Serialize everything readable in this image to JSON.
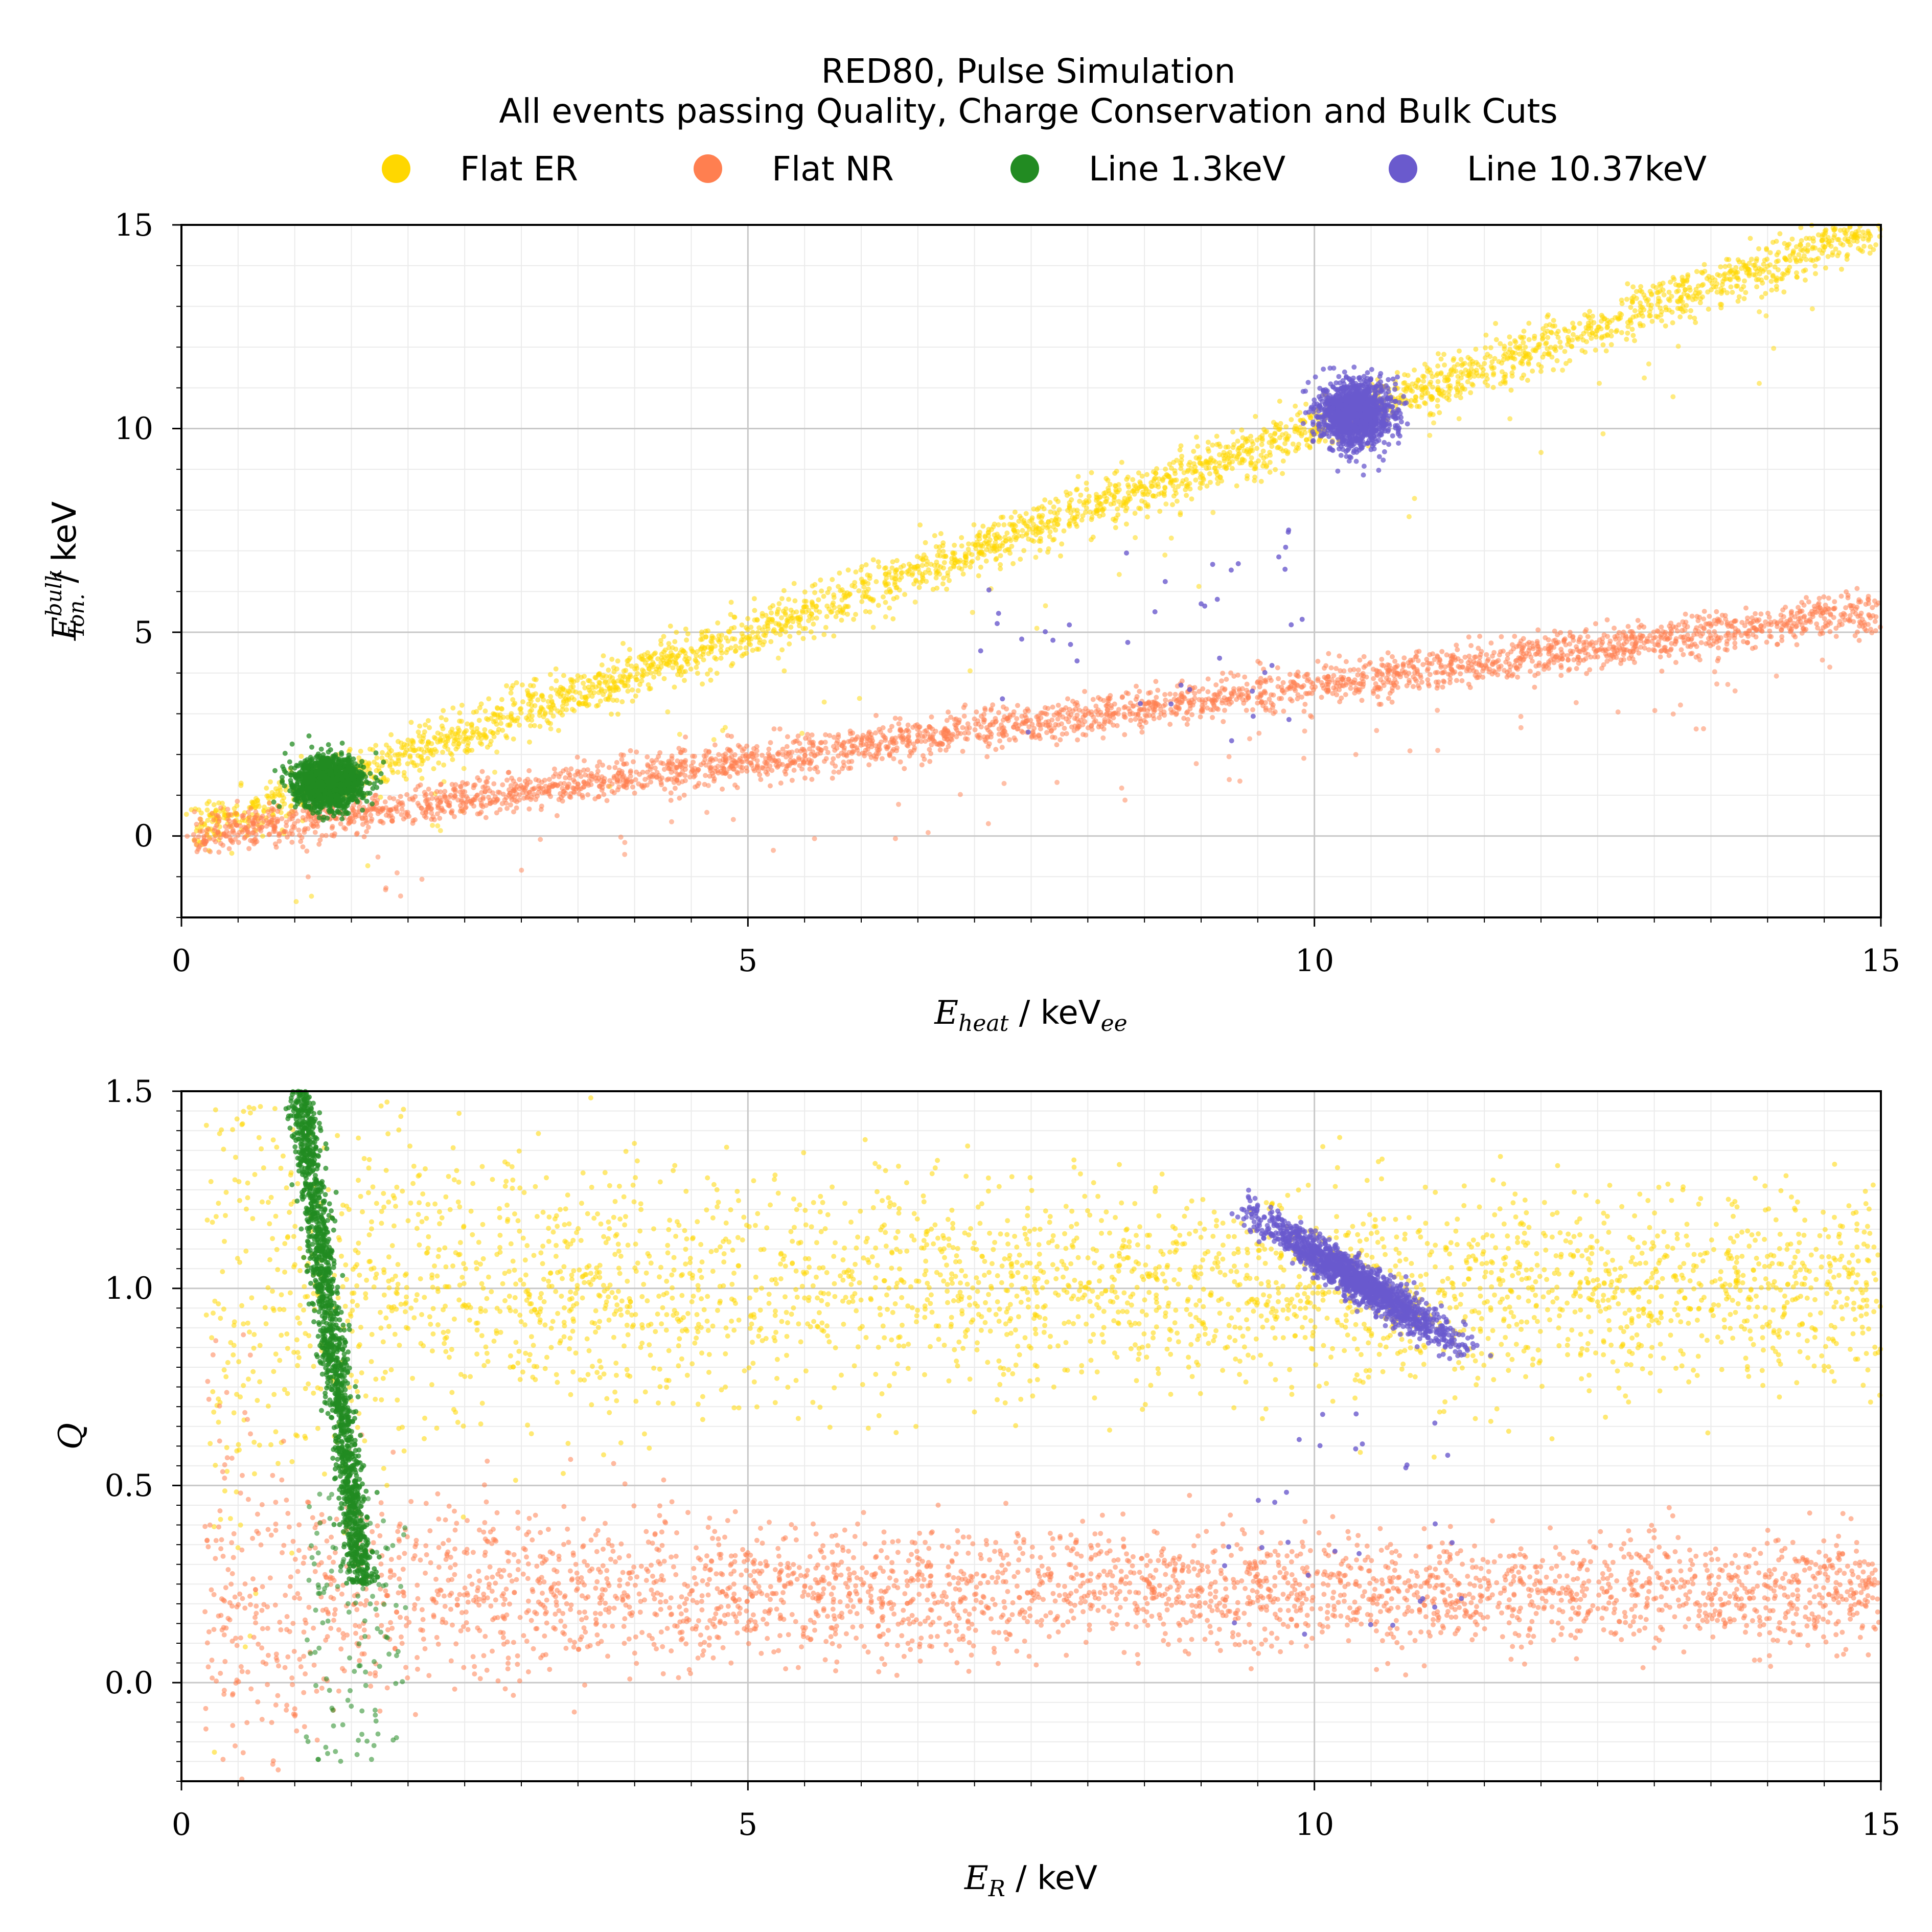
{
  "title": {
    "line1": "RED80, Pulse Simulation",
    "line2": "All events passing Quality, Charge Conservation and Bulk Cuts"
  },
  "legend": {
    "placement": "top-center",
    "items": [
      {
        "label": "Flat ER",
        "color": "#ffd700"
      },
      {
        "label": "Flat NR",
        "color": "#ff7f50"
      },
      {
        "label": "Line 1.3keV",
        "color": "#228b22"
      },
      {
        "label": "Line 10.37keV",
        "color": "#6a5acd"
      }
    ]
  },
  "chart_data": [
    {
      "type": "scatter",
      "title": "",
      "xlabel": {
        "var": "E",
        "sub": "heat",
        "unit": "keV",
        "unit_sub": "ee"
      },
      "ylabel": {
        "var": "E",
        "sub": "Ion.",
        "sup": "bulk",
        "unit": "keV"
      },
      "xlim": [
        0,
        15
      ],
      "ylim": [
        -2,
        15
      ],
      "xticks": [
        "0",
        "5",
        "10",
        "15"
      ],
      "xtick_values": [
        0,
        5,
        10,
        15
      ],
      "yticks": [
        "0",
        "5",
        "10",
        "15"
      ],
      "ytick_values": [
        0,
        5,
        10,
        15
      ],
      "grid": true,
      "series": [
        {
          "name": "Flat ER",
          "color": "#ffd700",
          "model": {
            "kind": "band",
            "x": [
              0.1,
              15
            ],
            "slope": 1.0,
            "intercept": 0.0,
            "spread": 0.3
          }
        },
        {
          "name": "Flat NR",
          "color": "#ff7f50",
          "model": {
            "kind": "band",
            "x": [
              0.1,
              15
            ],
            "slope": 0.37,
            "intercept": 0.0,
            "spread": 0.25
          }
        },
        {
          "name": "Line 1.3keV",
          "color": "#228b22",
          "model": {
            "kind": "blob",
            "center": [
              1.3,
              1.3
            ],
            "sigma": [
              0.15,
              0.3
            ]
          }
        },
        {
          "name": "Line 10.37keV",
          "color": "#6a5acd",
          "model": {
            "kind": "blob",
            "center": [
              10.37,
              10.37
            ],
            "sigma": [
              0.15,
              0.38
            ]
          }
        }
      ]
    },
    {
      "type": "scatter",
      "title": "",
      "xlabel": {
        "var": "E",
        "sub": "R",
        "unit": "keV"
      },
      "ylabel": {
        "var": "Q"
      },
      "xlim": [
        0,
        15
      ],
      "ylim": [
        -0.25,
        1.5
      ],
      "xticks": [
        "0",
        "5",
        "10",
        "15"
      ],
      "xtick_values": [
        0,
        5,
        10,
        15
      ],
      "yticks": [
        "0.0",
        "0.5",
        "1.0",
        "1.5"
      ],
      "ytick_values": [
        0.0,
        0.5,
        1.0,
        1.5
      ],
      "grid": true,
      "series": [
        {
          "name": "Flat ER",
          "color": "#ffd700",
          "model": {
            "kind": "band",
            "x": [
              0.2,
              15
            ],
            "q": 1.0,
            "spread": 0.1
          }
        },
        {
          "name": "Flat NR",
          "color": "#ff7f50",
          "model": {
            "kind": "band",
            "x": [
              0.2,
              15
            ],
            "q": 0.23,
            "spread": 0.06
          }
        },
        {
          "name": "Line 1.3keV",
          "color": "#228b22",
          "model": {
            "kind": "curve",
            "x": [
              1.0,
              2.0
            ],
            "q": [
              1.5,
              0.25
            ]
          }
        },
        {
          "name": "Line 10.37keV",
          "color": "#6a5acd",
          "model": {
            "kind": "streak",
            "x": [
              9.4,
              11.3
            ],
            "q": [
              1.2,
              0.85
            ]
          }
        }
      ]
    }
  ]
}
